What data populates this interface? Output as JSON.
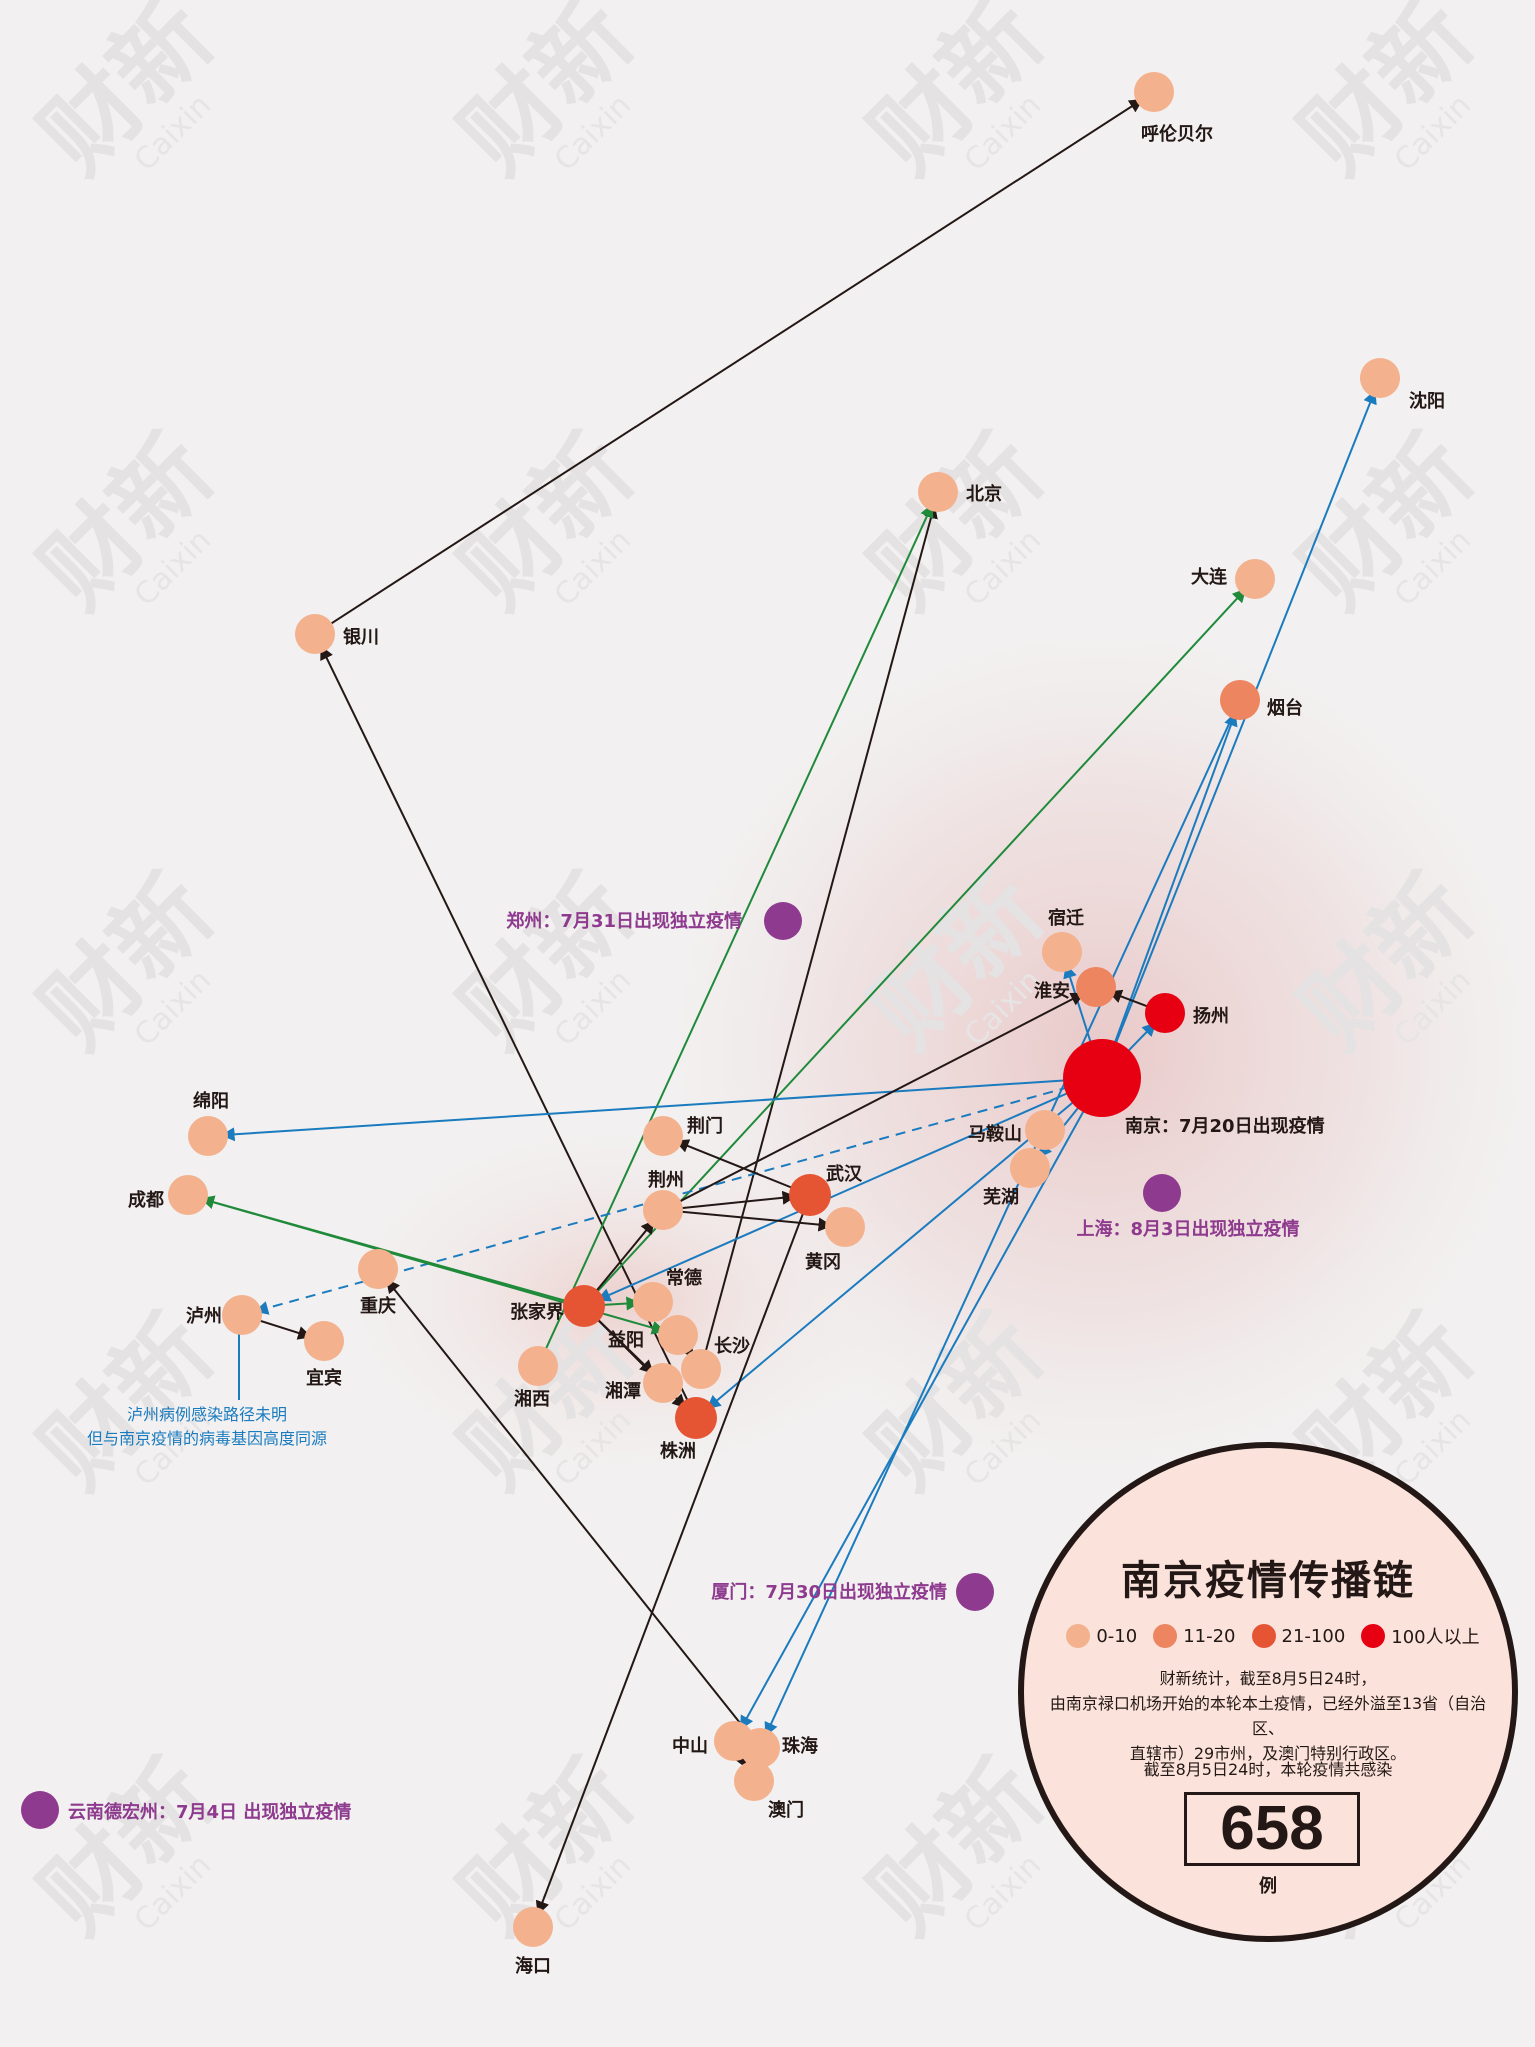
{
  "legend": {
    "title": "南京疫情传播链",
    "bins": [
      {
        "label": "0-10",
        "color": "#f3b18e"
      },
      {
        "label": "11-20",
        "color": "#ec8560"
      },
      {
        "label": "21-100",
        "color": "#e55433"
      },
      {
        "label": "100人以上",
        "color": "#e60012"
      }
    ],
    "desc_lines": [
      "财新统计，截至8月5日24时，",
      "由南京禄口机场开始的本轮本土疫情，已经外溢至13省（自治区、",
      "直辖市）29市州，及澳门特别行政区。"
    ],
    "total_caption": "截至8月5日24时，本轮疫情共感染",
    "total": "658",
    "unit": "例"
  },
  "edge_colors": {
    "black": "#231815",
    "blue": "#1a7bbf",
    "green": "#1f8a3a"
  },
  "nodes": [
    {
      "id": "nanjing",
      "name": "南京：7月20日出现疫情",
      "bin": 3,
      "big": true
    },
    {
      "id": "yangzhou",
      "name": "扬州",
      "bin": 3
    },
    {
      "id": "huaian",
      "name": "淮安",
      "bin": 1
    },
    {
      "id": "suqian",
      "name": "宿迁",
      "bin": 0
    },
    {
      "id": "maanshan",
      "name": "马鞍山",
      "bin": 0
    },
    {
      "id": "wuhu",
      "name": "芜湖",
      "bin": 0
    },
    {
      "id": "hulunbuir",
      "name": "呼伦贝尔",
      "bin": 0
    },
    {
      "id": "shenyang",
      "name": "沈阳",
      "bin": 0
    },
    {
      "id": "beijing",
      "name": "北京",
      "bin": 0
    },
    {
      "id": "dalian",
      "name": "大连",
      "bin": 0
    },
    {
      "id": "yantai",
      "name": "烟台",
      "bin": 1
    },
    {
      "id": "yinchuan",
      "name": "银川",
      "bin": 0
    },
    {
      "id": "mianyang",
      "name": "绵阳",
      "bin": 0
    },
    {
      "id": "chengdu",
      "name": "成都",
      "bin": 0
    },
    {
      "id": "luzhou",
      "name": "泸州",
      "bin": 0
    },
    {
      "id": "yibin",
      "name": "宜宾",
      "bin": 0
    },
    {
      "id": "chongqing",
      "name": "重庆",
      "bin": 0
    },
    {
      "id": "jingmen",
      "name": "荆门",
      "bin": 0
    },
    {
      "id": "jingzhou",
      "name": "荆州",
      "bin": 0
    },
    {
      "id": "wuhan",
      "name": "武汉",
      "bin": 2
    },
    {
      "id": "huanggang",
      "name": "黄冈",
      "bin": 0
    },
    {
      "id": "changde",
      "name": "常德",
      "bin": 0
    },
    {
      "id": "zhangjiajie",
      "name": "张家界",
      "bin": 2
    },
    {
      "id": "yiyang",
      "name": "益阳",
      "bin": 0
    },
    {
      "id": "changsha",
      "name": "长沙",
      "bin": 0
    },
    {
      "id": "xiangxi",
      "name": "湘西",
      "bin": 0
    },
    {
      "id": "xiangtan",
      "name": "湘潭",
      "bin": 0
    },
    {
      "id": "zhuzhou",
      "name": "株洲",
      "bin": 2
    },
    {
      "id": "zhongshan",
      "name": "中山",
      "bin": 0
    },
    {
      "id": "zhuhai",
      "name": "珠海",
      "bin": 0
    },
    {
      "id": "macau",
      "name": "澳门",
      "bin": 0
    },
    {
      "id": "haikou",
      "name": "海口",
      "bin": 0
    }
  ],
  "edges": [
    {
      "from": "yinchuan",
      "to": "hulunbuir",
      "color": "black"
    },
    {
      "from": "zhuzhou",
      "to": "yinchuan",
      "color": "black"
    },
    {
      "from": "changsha",
      "to": "beijing",
      "color": "black"
    },
    {
      "from": "xiangxi",
      "to": "beijing",
      "color": "green"
    },
    {
      "from": "zhangjiajie",
      "to": "dalian",
      "color": "green"
    },
    {
      "from": "nanjing",
      "to": "shenyang",
      "color": "blue"
    },
    {
      "from": "nanjing",
      "to": "yantai",
      "color": "blue"
    },
    {
      "from": "nanjing",
      "to": "yangzhou",
      "color": "blue"
    },
    {
      "from": "nanjing",
      "to": "suqian",
      "color": "blue"
    },
    {
      "from": "yangzhou",
      "to": "huaian",
      "color": "black"
    },
    {
      "from": "nanjing",
      "to": "mianyang",
      "color": "blue"
    },
    {
      "from": "nanjing",
      "to": "luzhou",
      "color": "blue",
      "dashed": true
    },
    {
      "from": "nanjing",
      "to": "wuhu",
      "color": "blue"
    },
    {
      "from": "nanjing",
      "to": "zhangjiajie",
      "color": "blue"
    },
    {
      "from": "nanjing",
      "to": "zhuzhou",
      "color": "blue"
    },
    {
      "from": "nanjing",
      "to": "zhongshan",
      "color": "blue"
    },
    {
      "from": "yantai",
      "to": "zhuhai",
      "color": "blue"
    },
    {
      "from": "jingzhou",
      "to": "huaian",
      "color": "black"
    },
    {
      "from": "wuhan",
      "to": "jingmen",
      "color": "black"
    },
    {
      "from": "jingzhou",
      "to": "wuhan",
      "color": "black"
    },
    {
      "from": "jingzhou",
      "to": "huanggang",
      "color": "black"
    },
    {
      "from": "zhangjiajie",
      "to": "jingzhou",
      "color": "black"
    },
    {
      "from": "zhangjiajie",
      "to": "chengdu",
      "color": "green"
    },
    {
      "from": "chengdu",
      "to": "yiyang",
      "color": "green"
    },
    {
      "from": "zhangjiajie",
      "to": "changde",
      "color": "green"
    },
    {
      "from": "zhangjiajie",
      "to": "zhuzhou",
      "color": "black"
    },
    {
      "from": "zhangjiajie",
      "to": "xiangtan",
      "color": "black"
    },
    {
      "from": "yiyang",
      "to": "changsha",
      "color": "black"
    },
    {
      "from": "wuhan",
      "to": "haikou",
      "color": "black"
    },
    {
      "from": "zhuhai",
      "to": "chongqing",
      "color": "black"
    },
    {
      "from": "luzhou",
      "to": "yibin",
      "color": "black"
    },
    {
      "from": "zhongshan",
      "to": "macau",
      "color": "black"
    }
  ],
  "events": [
    {
      "id": "zhengzhou",
      "text": "郑州：7月31日出现独立疫情"
    },
    {
      "id": "shanghai",
      "text": "上海：8月3日出现独立疫情"
    },
    {
      "id": "xiamen",
      "text": "厦门：7月30日出现独立疫情"
    },
    {
      "id": "dehong",
      "text": "云南德宏州：7月4日 出现独立疫情"
    }
  ],
  "event_color": "#8e3a8e",
  "luzhou_note": [
    "泸州病例感染路径未明",
    "但与南京疫情的病毒基因高度同源"
  ],
  "watermark": {
    "text": "财新",
    "sub": "Caixin"
  }
}
